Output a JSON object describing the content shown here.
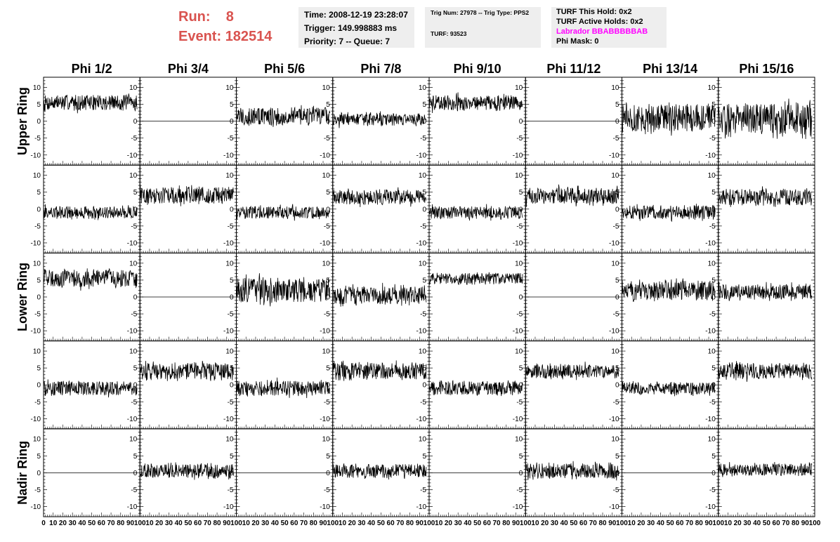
{
  "run_info": {
    "run_label": "Run:",
    "run_value": "8",
    "event_label": "Event:",
    "event_value": "182514"
  },
  "info_panel_1": {
    "time": "Time: 2008-12-19 23:28:07",
    "trigger": "Trigger: 149.998883 ms",
    "priority": "Priority: 7 -- Queue: 7"
  },
  "info_panel_2": {
    "trig": "Trig Num: 27978 -- Trig Type: PPS2",
    "turf": "TURF: 93523"
  },
  "info_panel_3": {
    "this_hold": "TURF This Hold: 0x2",
    "active_holds": "TURF Active Holds: 0x2",
    "labrador": "Labrador BBABBBBBAB",
    "phi_mask": "Phi Mask: 0"
  },
  "colors": {
    "run_text": "#d9534f",
    "labrador": "#ff00ff",
    "trace": "#000000",
    "panel_bg": "#eeeeee"
  },
  "chart_data": {
    "type": "line",
    "columns": [
      "Phi 1/2",
      "Phi 3/4",
      "Phi 5/6",
      "Phi 7/8",
      "Phi 9/10",
      "Phi 11/12",
      "Phi 13/14",
      "Phi 15/16"
    ],
    "rows": [
      "Upper Ring",
      "",
      "Lower Ring",
      "",
      "Nadir Ring"
    ],
    "ylim": [
      -13,
      13
    ],
    "xlim": [
      0,
      100
    ],
    "yticks": [
      10,
      5,
      0,
      -5,
      -10
    ],
    "xticks": [
      0,
      10,
      20,
      30,
      40,
      50,
      60,
      70,
      80,
      90,
      100
    ],
    "xtick_labels": [
      "0",
      "10",
      "20",
      "30",
      "40",
      "50",
      "60",
      "70",
      "80",
      "90",
      "100"
    ],
    "samples_per_trace": 260,
    "trace_span": [
      0,
      97
    ],
    "traces": [
      [
        {
          "base": 5.5,
          "amp": 2.2
        },
        {
          "base": 0,
          "amp": 0
        },
        {
          "base": 1.5,
          "amp": 2.6
        },
        {
          "base": 0.5,
          "amp": 1.8
        },
        {
          "base": 5.5,
          "amp": 2.2
        },
        {
          "base": 0,
          "amp": 0
        },
        {
          "base": 1.0,
          "amp": 4.0
        },
        {
          "base": 0.5,
          "amp": 4.5
        }
      ],
      [
        {
          "base": -1.0,
          "amp": 1.8
        },
        {
          "base": 4.0,
          "amp": 2.4
        },
        {
          "base": -1.0,
          "amp": 1.8
        },
        {
          "base": 3.5,
          "amp": 2.2
        },
        {
          "base": -1.0,
          "amp": 1.8
        },
        {
          "base": 4.0,
          "amp": 2.4
        },
        {
          "base": -1.0,
          "amp": 2.0
        },
        {
          "base": 3.5,
          "amp": 2.4
        }
      ],
      [
        {
          "base": 5.5,
          "amp": 2.5
        },
        {
          "base": 0,
          "amp": 0
        },
        {
          "base": 2.0,
          "amp": 3.5
        },
        {
          "base": 0.5,
          "amp": 2.6
        },
        {
          "base": 5.5,
          "amp": 1.6
        },
        {
          "base": 0,
          "amp": 0
        },
        {
          "base": 2.0,
          "amp": 2.8
        },
        {
          "base": 1.5,
          "amp": 2.2
        }
      ],
      [
        {
          "base": -1.0,
          "amp": 2.0
        },
        {
          "base": 4.0,
          "amp": 2.4
        },
        {
          "base": -1.0,
          "amp": 2.2
        },
        {
          "base": 4.0,
          "amp": 2.5
        },
        {
          "base": -1.0,
          "amp": 2.0
        },
        {
          "base": 4.0,
          "amp": 2.0
        },
        {
          "base": -1.0,
          "amp": 1.8
        },
        {
          "base": 4.0,
          "amp": 2.2
        }
      ],
      [
        {
          "base": 0,
          "amp": 0
        },
        {
          "base": 0.5,
          "amp": 2.0
        },
        {
          "base": 0,
          "amp": 0
        },
        {
          "base": 0.5,
          "amp": 2.0
        },
        {
          "base": 0,
          "amp": 0
        },
        {
          "base": 0.5,
          "amp": 2.2
        },
        {
          "base": 0,
          "amp": 0
        },
        {
          "base": 1.0,
          "amp": 1.8
        }
      ]
    ]
  }
}
